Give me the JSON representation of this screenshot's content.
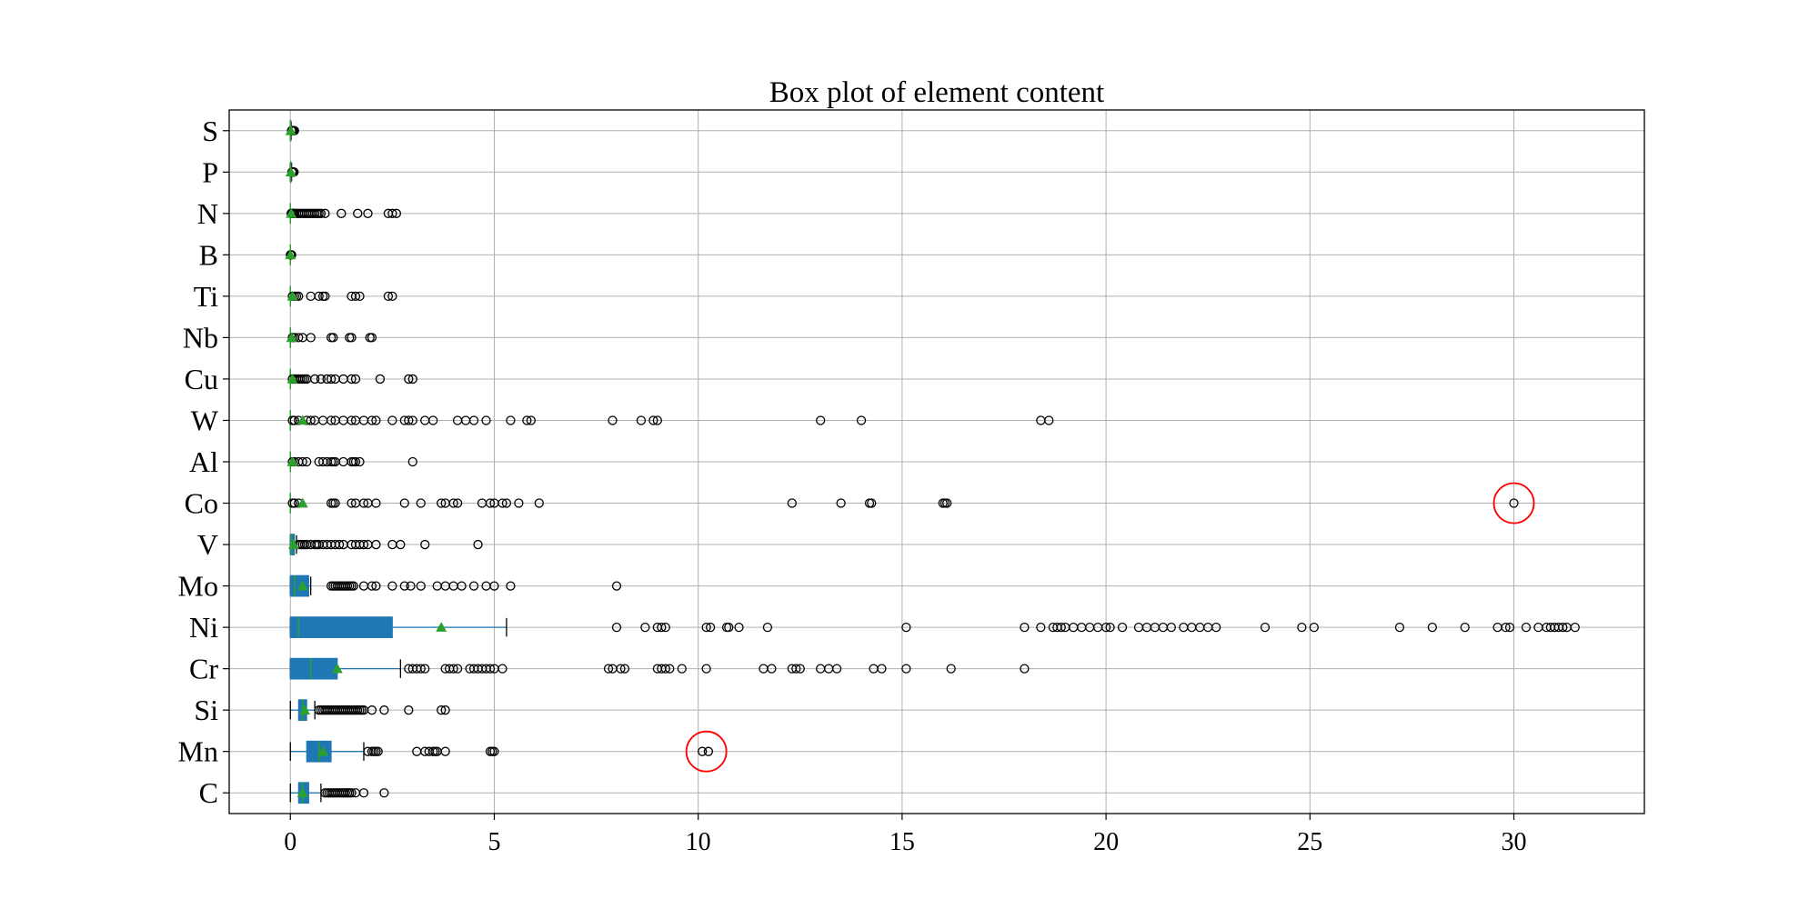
{
  "chart_data": {
    "type": "box",
    "orientation": "horizontal",
    "title": "Box plot of element content",
    "xlabel": "",
    "ylabel": "",
    "xlim": [
      -1.5,
      33.2
    ],
    "xticks": [
      0,
      5,
      10,
      15,
      20,
      25,
      30
    ],
    "grid": true,
    "colors": {
      "box_fill": "#1f77b4",
      "whisker": "#1f77b4",
      "median": "#2ca02c",
      "mean_marker": "#2ca02c",
      "flier": "#000000",
      "highlight_circle": "#ff0000",
      "grid": "#b0b0b0"
    },
    "categories": [
      "S",
      "P",
      "N",
      "B",
      "Ti",
      "Nb",
      "Cu",
      "W",
      "Al",
      "Co",
      "V",
      "Mo",
      "Ni",
      "Cr",
      "Si",
      "Mn",
      "C"
    ],
    "boxes": [
      {
        "name": "S",
        "whislo": 0.0,
        "q1": 0.002,
        "med": 0.005,
        "q3": 0.01,
        "whishi": 0.02,
        "mean": 0.01,
        "fliers": [
          0.03,
          0.04,
          0.05,
          0.06,
          0.07,
          0.08,
          0.09,
          0.1
        ]
      },
      {
        "name": "P",
        "whislo": 0.0,
        "q1": 0.005,
        "med": 0.01,
        "q3": 0.015,
        "whishi": 0.03,
        "mean": 0.012,
        "fliers": [
          0.04,
          0.05,
          0.06,
          0.07,
          0.08,
          0.09
        ]
      },
      {
        "name": "N",
        "whislo": 0.0,
        "q1": 0.0,
        "med": 0.0,
        "q3": 0.0,
        "whishi": 0.0,
        "mean": 0.02,
        "fliers": [
          0.02,
          0.05,
          0.08,
          0.1,
          0.15,
          0.2,
          0.25,
          0.3,
          0.35,
          0.4,
          0.45,
          0.5,
          0.55,
          0.6,
          0.65,
          0.7,
          0.75,
          0.85,
          1.25,
          1.65,
          1.9,
          2.4,
          2.5,
          2.6
        ]
      },
      {
        "name": "B",
        "whislo": 0.0,
        "q1": 0.0,
        "med": 0.0,
        "q3": 0.0,
        "whishi": 0.0,
        "mean": 0.002,
        "fliers": [
          0.002,
          0.005,
          0.01,
          0.02,
          0.03
        ]
      },
      {
        "name": "Ti",
        "whislo": 0.0,
        "q1": 0.0,
        "med": 0.0,
        "q3": 0.0,
        "whishi": 0.0,
        "mean": 0.05,
        "fliers": [
          0.05,
          0.1,
          0.15,
          0.2,
          0.5,
          0.7,
          0.8,
          0.85,
          1.5,
          1.6,
          1.7,
          2.4,
          2.5
        ]
      },
      {
        "name": "Nb",
        "whislo": 0.0,
        "q1": 0.0,
        "med": 0.0,
        "q3": 0.0,
        "whishi": 0.0,
        "mean": 0.03,
        "fliers": [
          0.05,
          0.1,
          0.2,
          0.3,
          0.5,
          1.0,
          1.05,
          1.45,
          1.5,
          1.95,
          2.0
        ]
      },
      {
        "name": "Cu",
        "whislo": 0.0,
        "q1": 0.0,
        "med": 0.0,
        "q3": 0.0,
        "whishi": 0.0,
        "mean": 0.05,
        "fliers": [
          0.05,
          0.1,
          0.15,
          0.2,
          0.25,
          0.3,
          0.35,
          0.4,
          0.6,
          0.75,
          0.9,
          1.0,
          1.1,
          1.3,
          1.5,
          1.6,
          2.2,
          2.9,
          3.0
        ]
      },
      {
        "name": "W",
        "whislo": 0.0,
        "q1": 0.0,
        "med": 0.0,
        "q3": 0.0,
        "whishi": 0.0,
        "mean": 0.3,
        "fliers": [
          0.05,
          0.1,
          0.2,
          0.4,
          0.5,
          0.6,
          0.8,
          1.0,
          1.1,
          1.3,
          1.5,
          1.6,
          1.8,
          2.0,
          2.1,
          2.5,
          2.8,
          2.9,
          3.0,
          3.3,
          3.5,
          4.1,
          4.3,
          4.5,
          4.8,
          5.4,
          5.8,
          5.9,
          7.9,
          8.6,
          8.9,
          9.0,
          13.0,
          14.0,
          18.4,
          18.6
        ]
      },
      {
        "name": "Al",
        "whislo": 0.0,
        "q1": 0.0,
        "med": 0.0,
        "q3": 0.0,
        "whishi": 0.0,
        "mean": 0.05,
        "fliers": [
          0.05,
          0.1,
          0.2,
          0.3,
          0.4,
          0.7,
          0.8,
          0.9,
          1.0,
          1.05,
          1.1,
          1.3,
          1.5,
          1.55,
          1.6,
          1.7,
          3.0
        ]
      },
      {
        "name": "Co",
        "whislo": 0.0,
        "q1": 0.0,
        "med": 0.0,
        "q3": 0.0,
        "whishi": 0.0,
        "mean": 0.3,
        "fliers": [
          0.05,
          0.1,
          0.2,
          1.0,
          1.05,
          1.1,
          1.5,
          1.6,
          1.8,
          1.9,
          2.1,
          2.8,
          3.2,
          3.7,
          3.8,
          4.0,
          4.1,
          4.7,
          4.9,
          5.0,
          5.2,
          5.3,
          5.6,
          6.1,
          12.3,
          13.5,
          14.2,
          14.25,
          16.0,
          16.05,
          16.1,
          30.0
        ]
      },
      {
        "name": "V",
        "whislo": 0.0,
        "q1": 0.0,
        "med": 0.02,
        "q3": 0.1,
        "whishi": 0.15,
        "mean": 0.08,
        "fliers": [
          0.2,
          0.25,
          0.3,
          0.35,
          0.4,
          0.5,
          0.6,
          0.65,
          0.7,
          0.8,
          0.9,
          1.0,
          1.1,
          1.2,
          1.3,
          1.5,
          1.6,
          1.7,
          1.8,
          1.9,
          2.1,
          2.5,
          2.7,
          3.3,
          4.6
        ]
      },
      {
        "name": "Mo",
        "whislo": 0.0,
        "q1": 0.0,
        "med": 0.1,
        "q3": 0.45,
        "whishi": 0.5,
        "mean": 0.3,
        "fliers": [
          1.0,
          1.05,
          1.1,
          1.15,
          1.2,
          1.25,
          1.3,
          1.35,
          1.4,
          1.45,
          1.5,
          1.55,
          1.8,
          2.0,
          2.1,
          2.5,
          2.8,
          2.95,
          3.2,
          3.6,
          3.8,
          4.0,
          4.2,
          4.5,
          4.8,
          5.0,
          5.4,
          8.0
        ]
      },
      {
        "name": "Ni",
        "whislo": 0.0,
        "q1": 0.0,
        "med": 0.2,
        "q3": 2.5,
        "whishi": 5.3,
        "mean": 3.7,
        "fliers": [
          8.0,
          8.7,
          9.0,
          9.1,
          9.2,
          10.2,
          10.3,
          10.7,
          10.75,
          11.0,
          11.7,
          15.1,
          18.0,
          18.4,
          18.7,
          18.8,
          18.9,
          19.0,
          19.2,
          19.4,
          19.6,
          19.8,
          20.0,
          20.1,
          20.4,
          20.8,
          21.0,
          21.2,
          21.4,
          21.6,
          21.9,
          22.1,
          22.3,
          22.5,
          22.7,
          23.9,
          24.8,
          25.1,
          27.2,
          28.0,
          28.8,
          29.6,
          29.8,
          29.9,
          30.3,
          30.6,
          30.8,
          30.9,
          31.0,
          31.1,
          31.2,
          31.3,
          31.5
        ]
      },
      {
        "name": "Cr",
        "whislo": 0.0,
        "q1": 0.0,
        "med": 0.5,
        "q3": 1.15,
        "whishi": 2.7,
        "mean": 1.15,
        "fliers": [
          2.9,
          3.0,
          3.1,
          3.2,
          3.3,
          3.8,
          3.9,
          4.0,
          4.1,
          4.4,
          4.5,
          4.6,
          4.7,
          4.8,
          4.9,
          5.0,
          5.2,
          7.8,
          7.9,
          8.1,
          8.2,
          9.0,
          9.1,
          9.2,
          9.3,
          9.6,
          10.2,
          11.6,
          11.8,
          12.3,
          12.4,
          12.5,
          13.0,
          13.2,
          13.4,
          14.3,
          14.5,
          15.1,
          16.2,
          18.0
        ]
      },
      {
        "name": "Si",
        "whislo": 0.0,
        "q1": 0.2,
        "med": 0.3,
        "q3": 0.4,
        "whishi": 0.6,
        "mean": 0.35,
        "fliers": [
          0.7,
          0.75,
          0.8,
          0.85,
          0.9,
          0.95,
          1.0,
          1.05,
          1.1,
          1.15,
          1.2,
          1.25,
          1.3,
          1.35,
          1.4,
          1.45,
          1.5,
          1.55,
          1.6,
          1.65,
          1.7,
          1.75,
          1.8,
          2.0,
          2.3,
          2.9,
          3.7,
          3.8
        ]
      },
      {
        "name": "Mn",
        "whislo": 0.0,
        "q1": 0.4,
        "med": 0.7,
        "q3": 1.0,
        "whishi": 1.8,
        "mean": 0.8,
        "fliers": [
          1.9,
          2.0,
          2.05,
          2.1,
          2.15,
          3.1,
          3.3,
          3.4,
          3.5,
          3.55,
          3.6,
          3.8,
          4.9,
          4.95,
          5.0,
          10.1,
          10.25
        ]
      },
      {
        "name": "C",
        "whislo": 0.0,
        "q1": 0.2,
        "med": 0.3,
        "q3": 0.45,
        "whishi": 0.75,
        "mean": 0.3,
        "fliers": [
          0.85,
          0.9,
          0.95,
          1.0,
          1.05,
          1.1,
          1.15,
          1.2,
          1.25,
          1.3,
          1.35,
          1.4,
          1.45,
          1.5,
          1.6,
          1.8,
          2.3
        ]
      }
    ],
    "highlighted_points": [
      {
        "category": "Co",
        "value": 30.0
      },
      {
        "category": "Mn",
        "value": 10.2
      }
    ]
  }
}
